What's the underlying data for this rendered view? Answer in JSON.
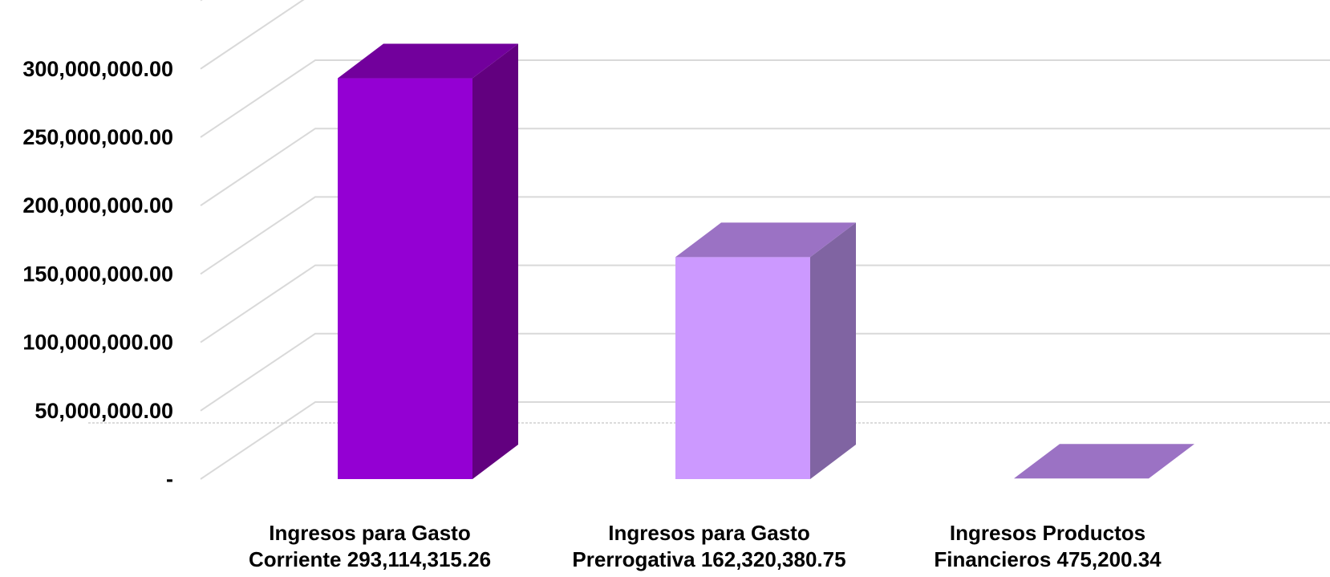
{
  "chart_data": {
    "type": "bar",
    "style": "3d-column",
    "title": "",
    "xlabel": "",
    "ylabel": "",
    "ylim": [
      0,
      350000000
    ],
    "y_ticks": [
      0,
      50000000,
      100000000,
      150000000,
      200000000,
      250000000,
      300000000
    ],
    "y_tick_labels": [
      "-",
      "50,000,000.00",
      "100,000,000.00",
      "150,000,000.00",
      "200,000,000.00",
      "250,000,000.00",
      "300,000,000.00"
    ],
    "grid": true,
    "legend": "none",
    "categories": [
      [
        "Ingresos para Gasto",
        "Corriente 293,114,315.26"
      ],
      [
        "Ingresos para Gasto",
        "Prerrogativa 162,320,380.75"
      ],
      [
        "Ingresos Productos",
        "Financieros 475,200.34"
      ]
    ],
    "values": [
      293114315.26,
      162320380.75,
      475200.34
    ],
    "colors": [
      {
        "front": "#9400D3",
        "side": "#62007F",
        "top": "#72009C"
      },
      {
        "front": "#CC99FF",
        "side": "#8064A2",
        "top": "#9B72C4"
      },
      {
        "front": "#A57BD1",
        "side": "#8064A2",
        "top": "#9B72C4"
      }
    ]
  }
}
